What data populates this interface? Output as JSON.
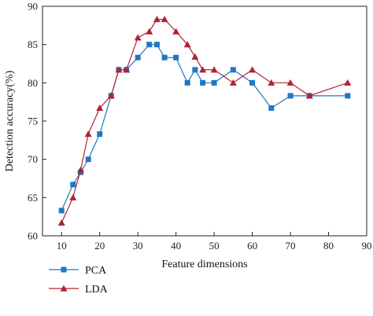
{
  "chart_data": {
    "type": "line",
    "xlabel": "Feature dimensions",
    "ylabel": "Detection accuracy(%)",
    "xlim": [
      5,
      90
    ],
    "ylim": [
      60,
      90
    ],
    "xticks": [
      10,
      20,
      30,
      40,
      50,
      60,
      70,
      80,
      90
    ],
    "yticks": [
      60,
      65,
      70,
      75,
      80,
      85,
      90
    ],
    "grid": false,
    "legend_position": "bottom-left-outside",
    "series": [
      {
        "name": "PCA",
        "color": "#1f77c4",
        "marker": "square",
        "x": [
          10,
          13,
          15,
          17,
          20,
          23,
          25,
          27,
          30,
          33,
          35,
          37,
          40,
          43,
          45,
          47,
          50,
          55,
          60,
          65,
          70,
          75,
          85
        ],
        "y": [
          63.3,
          66.7,
          68.3,
          70.0,
          73.3,
          78.3,
          81.7,
          81.7,
          83.3,
          85.0,
          85.0,
          83.3,
          83.3,
          80.0,
          81.7,
          80.0,
          80.0,
          81.7,
          80.0,
          76.7,
          78.3,
          78.3,
          78.3
        ]
      },
      {
        "name": "LDA",
        "color": "#b22234",
        "marker": "triangle",
        "x": [
          10,
          13,
          15,
          17,
          20,
          23,
          25,
          27,
          30,
          33,
          35,
          37,
          40,
          43,
          45,
          47,
          50,
          55,
          60,
          65,
          70,
          75,
          85
        ],
        "y": [
          61.7,
          65.0,
          68.6,
          73.3,
          76.7,
          78.3,
          81.7,
          81.7,
          85.9,
          86.7,
          88.3,
          88.3,
          86.7,
          85.0,
          83.4,
          81.7,
          81.7,
          80.0,
          81.7,
          80.0,
          80.0,
          78.3,
          80.0
        ]
      }
    ]
  }
}
